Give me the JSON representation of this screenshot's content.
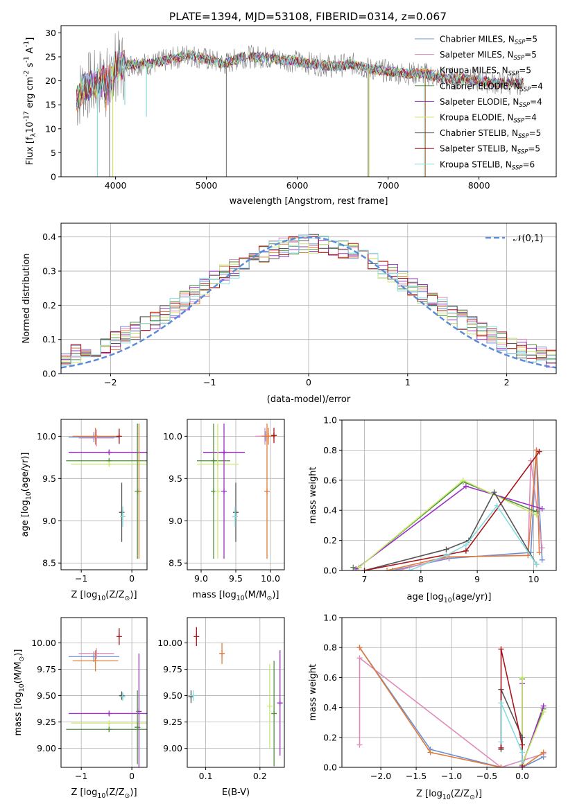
{
  "title": "PLATE=1394, MJD=53108, FIBERID=0314, z=0.067",
  "colors": {
    "Chabrier MILES": "#6a8fd3",
    "Salpeter MILES": "#e08ab8",
    "Kroupa MILES": "#e07b39",
    "Chabrier ELODIE": "#4f8f3f",
    "Salpeter ELODIE": "#9b30c7",
    "Kroupa ELODIE": "#c9e86a",
    "Chabrier STELIB": "#555555",
    "Salpeter STELIB": "#a8141c",
    "Kroupa STELIB": "#86dde0",
    "data": "#808080",
    "normal": "#5b8bd9"
  },
  "chart_data": [
    {
      "id": "spectrum",
      "type": "line",
      "xlabel": "wavelength [Angstrom, rest frame]",
      "ylabel": "Flux [f$_\\lambda$10$^{-17}$ erg cm$^{-2}$ s$^{-1}$ A$^{-1}$]",
      "xlim": [
        3400,
        8850
      ],
      "ylim": [
        0,
        31.5
      ],
      "xticks": [
        4000,
        5000,
        6000,
        7000,
        8000
      ],
      "yticks": [
        0,
        5,
        10,
        15,
        20,
        25,
        30
      ],
      "legend": "top-right",
      "legend_entries": [
        [
          "Chabrier MILES, N",
          "SSP",
          "=5"
        ],
        [
          "Salpeter MILES, N",
          "SSP",
          "=5"
        ],
        [
          "Kroupa MILES, N",
          "SSP",
          "=5"
        ],
        [
          "Chabrier ELODIE, N",
          "SSP",
          "=4"
        ],
        [
          "Salpeter ELODIE, N",
          "SSP",
          "=4"
        ],
        [
          "Kroupa ELODIE, N",
          "SSP",
          "=4"
        ],
        [
          "Chabrier STELIB, N",
          "SSP",
          "=5"
        ],
        [
          "Salpeter STELIB, N",
          "SSP",
          "=5"
        ],
        [
          "Kroupa STELIB, N",
          "SSP",
          "=6"
        ]
      ],
      "continuum": [
        [
          3570,
          16
        ],
        [
          3650,
          19
        ],
        [
          3750,
          19
        ],
        [
          3850,
          20
        ],
        [
          3950,
          23
        ],
        [
          4050,
          23
        ],
        [
          4200,
          23.5
        ],
        [
          4400,
          23.5
        ],
        [
          4600,
          24.5
        ],
        [
          4800,
          25.5
        ],
        [
          5000,
          24.5
        ],
        [
          5200,
          23.5
        ],
        [
          5400,
          25
        ],
        [
          5600,
          25
        ],
        [
          5800,
          24.5
        ],
        [
          6000,
          24
        ],
        [
          6200,
          23.5
        ],
        [
          6400,
          23
        ],
        [
          6600,
          23.5
        ],
        [
          6800,
          22.5
        ],
        [
          7000,
          22
        ],
        [
          7200,
          21.5
        ],
        [
          7400,
          21.5
        ],
        [
          7600,
          20.5
        ],
        [
          7800,
          20.5
        ],
        [
          8000,
          20
        ],
        [
          8200,
          19.5
        ],
        [
          8400,
          19.5
        ],
        [
          8500,
          19.5
        ]
      ],
      "dips": [
        [
          3934,
          0,
          "data"
        ],
        [
          3969,
          0,
          "Kroupa ELODIE"
        ],
        [
          3800,
          0,
          "Kroupa STELIB"
        ],
        [
          4102,
          15,
          "Kroupa STELIB"
        ],
        [
          4340,
          12.5,
          "Kroupa STELIB"
        ],
        [
          5220,
          0,
          "data"
        ],
        [
          6780,
          0,
          "data"
        ],
        [
          6790,
          0,
          "Kroupa ELODIE"
        ],
        [
          7400,
          0,
          "Kroupa STELIB"
        ],
        [
          7410,
          0,
          "Kroupa MILES"
        ]
      ]
    },
    {
      "id": "residuals",
      "type": "line",
      "xlabel": "(data-model)/error",
      "ylabel": "Normed distribution",
      "xlim": [
        -2.5,
        2.5
      ],
      "ylim": [
        0,
        0.44
      ],
      "xticks": [
        -2,
        -1,
        0,
        1,
        2
      ],
      "yticks": [
        0.0,
        0.1,
        0.2,
        0.3,
        0.4
      ],
      "legend": "top-right",
      "legend_entries": [
        "$\\mathcal{N}(0,1)$"
      ],
      "bin_width": 0.1
    },
    {
      "id": "age_vs_Z",
      "type": "scatter",
      "xlabel": "Z [log$_{10}$(Z/Z$_\\odot$)]",
      "ylabel": "age  [log$_{10}$(age/yr)]",
      "xlim": [
        -1.4,
        0.3
      ],
      "ylim": [
        8.42,
        10.2
      ],
      "xticks": [
        -1,
        0
      ],
      "yticks": [
        8.5,
        9.0,
        9.5,
        10.0
      ],
      "points": [
        {
          "s": "Chabrier MILES",
          "x": -0.75,
          "xe": 0.5,
          "y": 9.99,
          "ye": 0.06
        },
        {
          "s": "Salpeter MILES",
          "x": -0.7,
          "xe": 0.35,
          "y": 9.98,
          "ye": 0.1
        },
        {
          "s": "Kroupa MILES",
          "x": -0.72,
          "xe": 0.45,
          "y": 10.0,
          "ye": 0.1
        },
        {
          "s": "Chabrier ELODIE",
          "x": -0.45,
          "xe": 0.85,
          "y": 9.71,
          "ye": 0.02
        },
        {
          "s": "Salpeter ELODIE",
          "x": -0.45,
          "xe": 0.8,
          "y": 9.81,
          "ye": 0.02
        },
        {
          "s": "Kroupa ELODIE",
          "x": -0.45,
          "xe": 0.75,
          "y": 9.67,
          "ye": 0.02
        },
        {
          "s": "Chabrier STELIB",
          "x": -0.2,
          "xe": 0.05,
          "y": 9.1,
          "ye": 0.35
        },
        {
          "s": "Salpeter STELIB",
          "x": -0.25,
          "xe": 0.02,
          "y": 10.0,
          "ye": 0.09
        },
        {
          "s": "Kroupa STELIB",
          "x": -0.18,
          "xe": 0.05,
          "y": 9.05,
          "ye": 0.12
        },
        {
          "s": "Kroupa MILES",
          "x": 0.14,
          "xe": 0.01,
          "y": 9.35,
          "ye": 0.8
        },
        {
          "s": "Chabrier ELODIE",
          "x": 0.11,
          "xe": 0.01,
          "y": 9.35,
          "ye": 0.8
        }
      ]
    },
    {
      "id": "age_vs_mass",
      "type": "scatter",
      "xlabel": "mass [log$_{10}$(M/M$_\\odot$)]",
      "ylabel": "",
      "xlim": [
        8.8,
        10.2
      ],
      "ylim": [
        8.42,
        10.2
      ],
      "xticks": [
        9.0,
        9.5,
        10.0
      ],
      "yticks": [
        8.5,
        9.0,
        9.5,
        10.0
      ],
      "points": [
        {
          "s": "Chabrier MILES",
          "x": 9.93,
          "xe": 0.12,
          "y": 10.0,
          "ye": 0.06
        },
        {
          "s": "Salpeter MILES",
          "x": 9.92,
          "xe": 0.14,
          "y": 10.0,
          "ye": 0.1
        },
        {
          "s": "Kroupa MILES",
          "x": 9.97,
          "xe": 0.1,
          "y": 10.0,
          "ye": 0.1
        },
        {
          "s": "Chabrier ELODIE",
          "x": 9.18,
          "xe": 0.24,
          "y": 9.71,
          "ye": 0.02
        },
        {
          "s": "Salpeter ELODIE",
          "x": 9.33,
          "xe": 0.3,
          "y": 9.81,
          "ye": 0.02
        },
        {
          "s": "Kroupa ELODIE",
          "x": 9.24,
          "xe": 0.3,
          "y": 9.67,
          "ye": 0.02
        },
        {
          "s": "Chabrier STELIB",
          "x": 9.5,
          "xe": 0.04,
          "y": 9.1,
          "ye": 0.35
        },
        {
          "s": "Salpeter STELIB",
          "x": 10.05,
          "xe": 0.04,
          "y": 10.01,
          "ye": 0.09
        },
        {
          "s": "Kroupa STELIB",
          "x": 9.49,
          "xe": 0.04,
          "y": 9.05,
          "ye": 0.12
        },
        {
          "s": "Chabrier ELODIE",
          "x": 9.18,
          "xe": 0.01,
          "y": 9.35,
          "ye": 0.8
        },
        {
          "s": "Kroupa ELODIE",
          "x": 9.24,
          "xe": 0.01,
          "y": 9.35,
          "ye": 0.8
        },
        {
          "s": "Salpeter ELODIE",
          "x": 9.33,
          "xe": 0.01,
          "y": 9.35,
          "ye": 0.8
        },
        {
          "s": "Kroupa MILES",
          "x": 9.95,
          "xe": 0.01,
          "y": 9.35,
          "ye": 0.8
        }
      ]
    },
    {
      "id": "weight_vs_age",
      "type": "line",
      "xlabel": "age  [log$_{10}$(age/yr)]",
      "ylabel": "mass weight",
      "xlim": [
        6.6,
        10.4
      ],
      "ylim": [
        0,
        1.0
      ],
      "xticks": [
        7,
        8,
        9,
        10
      ],
      "yticks": [
        0.0,
        0.2,
        0.4,
        0.6,
        0.8,
        1.0
      ],
      "series": [
        {
          "s": "Chabrier MILES",
          "pts": [
            [
              7.5,
              0.0
            ],
            [
              8.5,
              0.08
            ],
            [
              9.95,
              0.12
            ],
            [
              10.05,
              0.8
            ],
            [
              10.15,
              0.07
            ]
          ]
        },
        {
          "s": "Salpeter MILES",
          "pts": [
            [
              7.6,
              0.0
            ],
            [
              8.5,
              0.09
            ],
            [
              9.9,
              0.1
            ],
            [
              9.95,
              0.73
            ],
            [
              10.15,
              0.15
            ]
          ]
        },
        {
          "s": "Kroupa MILES",
          "pts": [
            [
              7.4,
              0.0
            ],
            [
              8.45,
              0.09
            ],
            [
              9.9,
              0.1
            ],
            [
              10.05,
              0.8
            ],
            [
              10.1,
              0.12
            ]
          ]
        },
        {
          "s": "Chabrier ELODIE",
          "pts": [
            [
              6.8,
              0.02
            ],
            [
              6.9,
              0.02
            ],
            [
              8.75,
              0.59
            ],
            [
              10.05,
              0.39
            ]
          ]
        },
        {
          "s": "Salpeter ELODIE",
          "pts": [
            [
              6.85,
              0.01
            ],
            [
              8.8,
              0.56
            ],
            [
              10.15,
              0.41
            ]
          ]
        },
        {
          "s": "Kroupa ELODIE",
          "pts": [
            [
              6.9,
              0.02
            ],
            [
              8.75,
              0.6
            ],
            [
              10.05,
              0.37
            ]
          ]
        },
        {
          "s": "Chabrier STELIB",
          "pts": [
            [
              7.0,
              0.0
            ],
            [
              8.45,
              0.14
            ],
            [
              8.85,
              0.2
            ],
            [
              9.3,
              0.52
            ],
            [
              10.05,
              0.04
            ]
          ]
        },
        {
          "s": "Salpeter STELIB",
          "pts": [
            [
              7.0,
              0.0
            ],
            [
              8.8,
              0.13
            ],
            [
              10.1,
              0.79
            ]
          ]
        },
        {
          "s": "Kroupa STELIB",
          "pts": [
            [
              7.8,
              0.0
            ],
            [
              8.45,
              0.1
            ],
            [
              8.8,
              0.17
            ],
            [
              9.35,
              0.43
            ],
            [
              10.05,
              0.04
            ]
          ]
        }
      ]
    },
    {
      "id": "mass_vs_Z",
      "type": "scatter",
      "xlabel": "Z [log$_{10}$(Z/Z$_\\odot$)]",
      "ylabel": "mass [log$_{10}$(M/M$_\\odot$)]",
      "xlim": [
        -1.4,
        0.3
      ],
      "ylim": [
        8.82,
        10.24
      ],
      "xticks": [
        -1,
        0
      ],
      "yticks": [
        9.0,
        9.25,
        9.5,
        9.75,
        10.0
      ],
      "points": [
        {
          "s": "Chabrier MILES",
          "x": -0.75,
          "xe": 0.5,
          "y": 9.87,
          "ye": 0.05
        },
        {
          "s": "Salpeter MILES",
          "x": -0.7,
          "xe": 0.35,
          "y": 9.9,
          "ye": 0.05
        },
        {
          "s": "Kroupa MILES",
          "x": -0.72,
          "xe": 0.45,
          "y": 9.83,
          "ye": 0.1
        },
        {
          "s": "Chabrier ELODIE",
          "x": -0.45,
          "xe": 0.85,
          "y": 9.18,
          "ye": 0.01
        },
        {
          "s": "Salpeter ELODIE",
          "x": -0.45,
          "xe": 0.8,
          "y": 9.33,
          "ye": 0.01
        },
        {
          "s": "Kroupa ELODIE",
          "x": -0.45,
          "xe": 0.75,
          "y": 9.24,
          "ye": 0.01
        },
        {
          "s": "Chabrier STELIB",
          "x": -0.2,
          "xe": 0.05,
          "y": 9.5,
          "ye": 0.04
        },
        {
          "s": "Salpeter STELIB",
          "x": -0.25,
          "xe": 0.02,
          "y": 10.06,
          "ye": 0.08
        },
        {
          "s": "Kroupa STELIB",
          "x": -0.18,
          "xe": 0.05,
          "y": 9.49,
          "ye": 0.04
        },
        {
          "s": "Salpeter ELODIE",
          "x": 0.14,
          "xe": 0.01,
          "y": 9.35,
          "ye": 0.55
        },
        {
          "s": "Chabrier ELODIE",
          "x": 0.11,
          "xe": 0.01,
          "y": 9.2,
          "ye": 0.35
        }
      ]
    },
    {
      "id": "mass_vs_EBV",
      "type": "scatter",
      "xlabel": "E(B-V)",
      "ylabel": "",
      "xlim": [
        0.066,
        0.245
      ],
      "ylim": [
        8.82,
        10.24
      ],
      "xticks": [
        0.1,
        0.2
      ],
      "yticks": [
        9.0,
        9.25,
        9.5,
        9.75,
        10.0
      ],
      "points": [
        {
          "s": "Chabrier STELIB",
          "x": 0.073,
          "y": 9.49,
          "ye": 0.06
        },
        {
          "s": "Kroupa STELIB",
          "x": 0.077,
          "y": 9.5,
          "ye": 0.05
        },
        {
          "s": "Salpeter STELIB",
          "x": 0.083,
          "y": 10.06,
          "ye": 0.09
        },
        {
          "s": "Kroupa MILES",
          "x": 0.13,
          "y": 9.9,
          "ye": 0.1
        },
        {
          "s": "Kroupa ELODIE",
          "x": 0.218,
          "y": 9.4,
          "ye": 0.4
        },
        {
          "s": "Chabrier ELODIE",
          "x": 0.226,
          "y": 9.33,
          "ye": 0.5
        },
        {
          "s": "Salpeter ELODIE",
          "x": 0.237,
          "y": 9.43,
          "ye": 0.5
        }
      ]
    },
    {
      "id": "weight_vs_Z",
      "type": "line",
      "xlabel": "Z [log$_{10}$(Z/Z$_\\odot$)]",
      "ylabel": "mass weight",
      "xlim": [
        -2.55,
        0.48
      ],
      "ylim": [
        0,
        1.0
      ],
      "xticks": [
        -2.0,
        -1.5,
        -1.0,
        -0.5,
        0.0
      ],
      "yticks": [
        0.0,
        0.2,
        0.4,
        0.6,
        0.8,
        1.0
      ],
      "series": [
        {
          "s": "Chabrier MILES",
          "pts": [
            [
              -2.3,
              0.8
            ],
            [
              -1.3,
              0.12
            ],
            [
              -0.3,
              0.0
            ],
            [
              0.0,
              0.0
            ],
            [
              0.3,
              0.07
            ]
          ]
        },
        {
          "s": "Salpeter MILES",
          "pts": [
            [
              -2.3,
              0.15
            ],
            [
              -2.3,
              0.73
            ],
            [
              -0.3,
              0.0
            ],
            [
              0.3,
              0.09
            ]
          ]
        },
        {
          "s": "Kroupa MILES",
          "pts": [
            [
              -2.3,
              0.8
            ],
            [
              -1.3,
              0.1
            ],
            [
              -0.3,
              0.0
            ],
            [
              0.0,
              0.0
            ],
            [
              0.3,
              0.1
            ]
          ]
        },
        {
          "s": "Chabrier ELODIE",
          "pts": [
            [
              0.0,
              0.59
            ],
            [
              0.0,
              0.02
            ],
            [
              0.3,
              0.39
            ]
          ]
        },
        {
          "s": "Salpeter ELODIE",
          "pts": [
            [
              0.0,
              0.56
            ],
            [
              0.0,
              0.01
            ],
            [
              0.3,
              0.41
            ]
          ]
        },
        {
          "s": "Kroupa ELODIE",
          "pts": [
            [
              0.0,
              0.6
            ],
            [
              0.0,
              0.02
            ],
            [
              0.3,
              0.37
            ]
          ]
        },
        {
          "s": "Chabrier STELIB",
          "pts": [
            [
              -0.3,
              0.12
            ],
            [
              -0.3,
              0.52
            ],
            [
              0.0,
              0.2
            ],
            [
              0.0,
              0.04
            ]
          ]
        },
        {
          "s": "Salpeter STELIB",
          "pts": [
            [
              -0.3,
              0.13
            ],
            [
              -0.3,
              0.79
            ],
            [
              0.0,
              0.15
            ],
            [
              0.0,
              0.0
            ]
          ]
        },
        {
          "s": "Kroupa STELIB",
          "pts": [
            [
              -0.3,
              0.17
            ],
            [
              -0.3,
              0.43
            ],
            [
              0.0,
              0.1
            ],
            [
              0.0,
              0.04
            ]
          ]
        }
      ]
    }
  ]
}
